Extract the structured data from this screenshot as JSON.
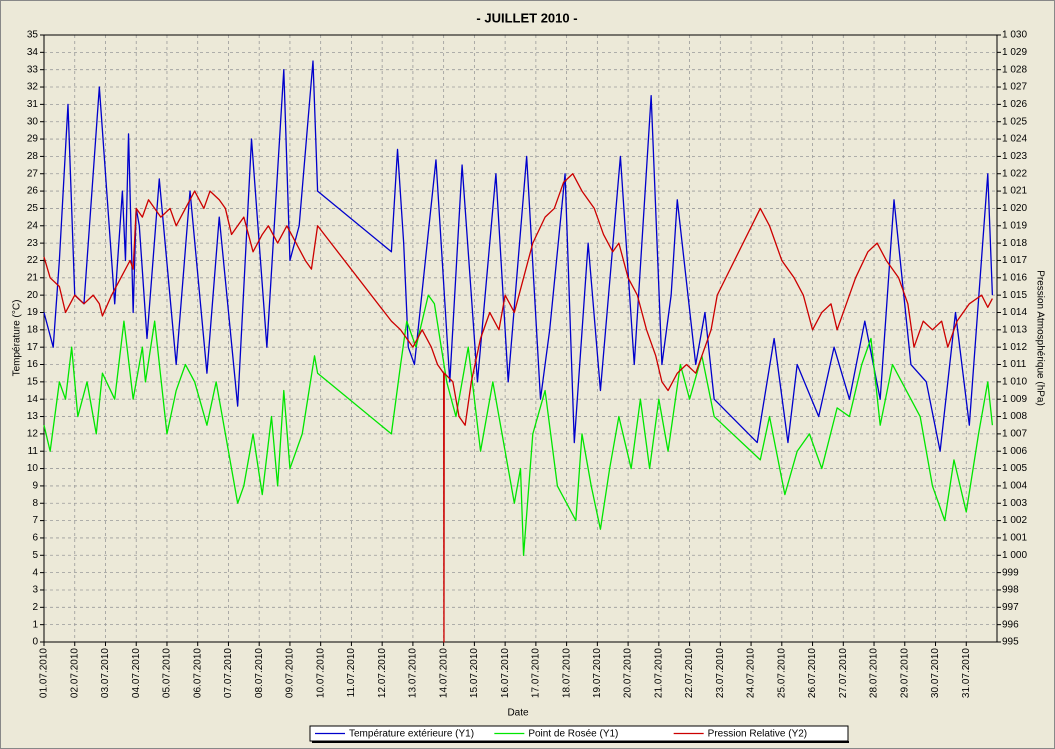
{
  "chart_data": {
    "type": "line",
    "title": "-  JUILLET  2010  -",
    "xlabel": "Date",
    "ylabel": "Température (°C)",
    "y2label": "Pression Atmosphérique (hPa)",
    "grid": true,
    "legend": "bottom",
    "xlim": [
      1,
      32
    ],
    "xticks": [
      {
        "value": 1,
        "label": "01.07.2010"
      },
      {
        "value": 2,
        "label": "02.07.2010"
      },
      {
        "value": 3,
        "label": "03.07.2010"
      },
      {
        "value": 4,
        "label": "04.07.2010"
      },
      {
        "value": 5,
        "label": "05.07.2010"
      },
      {
        "value": 6,
        "label": "06.07.2010"
      },
      {
        "value": 7,
        "label": "07.07.2010"
      },
      {
        "value": 8,
        "label": "08.07.2010"
      },
      {
        "value": 9,
        "label": "09.07.2010"
      },
      {
        "value": 10,
        "label": "10.07.2010"
      },
      {
        "value": 11,
        "label": "11.07.2010"
      },
      {
        "value": 12,
        "label": "12.07.2010"
      },
      {
        "value": 13,
        "label": "13.07.2010"
      },
      {
        "value": 14,
        "label": "14.07.2010"
      },
      {
        "value": 15,
        "label": "15.07.2010"
      },
      {
        "value": 16,
        "label": "16.07.2010"
      },
      {
        "value": 17,
        "label": "17.07.2010"
      },
      {
        "value": 18,
        "label": "18.07.2010"
      },
      {
        "value": 19,
        "label": "19.07.2010"
      },
      {
        "value": 20,
        "label": "20.07.2010"
      },
      {
        "value": 21,
        "label": "21.07.2010"
      },
      {
        "value": 22,
        "label": "22.07.2010"
      },
      {
        "value": 23,
        "label": "23.07.2010"
      },
      {
        "value": 24,
        "label": "24.07.2010"
      },
      {
        "value": 25,
        "label": "25.07.2010"
      },
      {
        "value": 26,
        "label": "26.07.2010"
      },
      {
        "value": 27,
        "label": "27.07.2010"
      },
      {
        "value": 28,
        "label": "28.07.2010"
      },
      {
        "value": 29,
        "label": "29.07.2010"
      },
      {
        "value": 30,
        "label": "30.07.2010"
      },
      {
        "value": 31,
        "label": "31.07.2010"
      }
    ],
    "ylim": [
      0,
      35
    ],
    "yticks": [
      0,
      1,
      2,
      3,
      4,
      5,
      6,
      7,
      8,
      9,
      10,
      11,
      12,
      13,
      14,
      15,
      16,
      17,
      18,
      19,
      20,
      21,
      22,
      23,
      24,
      25,
      26,
      27,
      28,
      29,
      30,
      31,
      32,
      33,
      34,
      35
    ],
    "y2lim": [
      995,
      1030
    ],
    "y2ticks": [
      995,
      996,
      997,
      998,
      999,
      {
        "value": 1000,
        "label": "1 000"
      },
      {
        "value": 1001,
        "label": "1 001"
      },
      {
        "value": 1002,
        "label": "1 002"
      },
      {
        "value": 1003,
        "label": "1 003"
      },
      {
        "value": 1004,
        "label": "1 004"
      },
      {
        "value": 1005,
        "label": "1 005"
      },
      {
        "value": 1006,
        "label": "1 006"
      },
      {
        "value": 1007,
        "label": "1 007"
      },
      {
        "value": 1008,
        "label": "1 008"
      },
      {
        "value": 1009,
        "label": "1 009"
      },
      {
        "value": 1010,
        "label": "1 010"
      },
      {
        "value": 1011,
        "label": "1 011"
      },
      {
        "value": 1012,
        "label": "1 012"
      },
      {
        "value": 1013,
        "label": "1 013"
      },
      {
        "value": 1014,
        "label": "1 014"
      },
      {
        "value": 1015,
        "label": "1 015"
      },
      {
        "value": 1016,
        "label": "1 016"
      },
      {
        "value": 1017,
        "label": "1 017"
      },
      {
        "value": 1018,
        "label": "1 018"
      },
      {
        "value": 1019,
        "label": "1 019"
      },
      {
        "value": 1020,
        "label": "1 020"
      },
      {
        "value": 1021,
        "label": "1 021"
      },
      {
        "value": 1022,
        "label": "1 022"
      },
      {
        "value": 1023,
        "label": "1 023"
      },
      {
        "value": 1024,
        "label": "1 024"
      },
      {
        "value": 1025,
        "label": "1 025"
      },
      {
        "value": 1026,
        "label": "1 026"
      },
      {
        "value": 1027,
        "label": "1 027"
      },
      {
        "value": 1028,
        "label": "1 028"
      },
      {
        "value": 1029,
        "label": "1 029"
      },
      {
        "value": 1030,
        "label": "1 030"
      }
    ],
    "series": [
      {
        "name": "Température extérieure (Y1)",
        "color": "#0000cc",
        "axis": "y",
        "x": [
          1.0,
          1.3,
          1.5,
          1.78,
          2.0,
          2.3,
          2.8,
          3.3,
          3.55,
          3.65,
          3.75,
          3.9,
          4.0,
          4.1,
          4.35,
          4.75,
          5.3,
          5.75,
          6.3,
          6.7,
          7.3,
          7.75,
          8.25,
          8.8,
          9.0,
          9.3,
          9.75,
          9.9,
          12.3,
          12.5,
          12.7,
          12.85,
          13.05,
          13.75,
          14.2,
          14.6,
          15.1,
          15.7,
          16.1,
          16.7,
          17.15,
          17.45,
          17.95,
          18.25,
          18.7,
          19.1,
          19.75,
          20.2,
          20.75,
          21.1,
          21.4,
          21.6,
          22.2,
          22.5,
          22.8,
          24.2,
          24.75,
          25.2,
          25.5,
          26.2,
          26.7,
          27.2,
          27.7,
          28.2,
          28.65,
          29.2,
          29.7,
          30.15,
          30.65,
          31.1,
          31.7,
          31.85
        ],
        "values": [
          19,
          17,
          22,
          31,
          20,
          19.5,
          32,
          19.5,
          26,
          22,
          29.3,
          19,
          25,
          24,
          17.5,
          26.7,
          16,
          26,
          15.5,
          24.5,
          13.6,
          29,
          17,
          33,
          22,
          24,
          33.5,
          26,
          22.5,
          28.4,
          23,
          17,
          16,
          27.8,
          15,
          27.5,
          15,
          27,
          15,
          28,
          14,
          18,
          27,
          11.5,
          23,
          14.5,
          28,
          16,
          31.5,
          16,
          20,
          25.5,
          16,
          19,
          14,
          11.5,
          17.5,
          11.5,
          16,
          13,
          17,
          14,
          18.5,
          14,
          25.5,
          16,
          15,
          11,
          19,
          12.5,
          27,
          20
        ]
      },
      {
        "name": "Point de Rosée (Y1)",
        "color": "#00e600",
        "axis": "y",
        "x": [
          1.0,
          1.2,
          1.5,
          1.7,
          1.9,
          2.1,
          2.4,
          2.7,
          2.9,
          3.3,
          3.6,
          3.9,
          4.2,
          4.3,
          4.6,
          5.0,
          5.3,
          5.6,
          5.9,
          6.3,
          6.6,
          6.9,
          7.3,
          7.5,
          7.8,
          8.1,
          8.4,
          8.6,
          8.8,
          9.0,
          9.4,
          9.8,
          9.9,
          12.3,
          12.6,
          12.8,
          13.1,
          13.5,
          13.7,
          14.1,
          14.4,
          14.8,
          15.2,
          15.6,
          15.9,
          16.3,
          16.5,
          16.6,
          16.9,
          17.3,
          17.7,
          18.3,
          18.5,
          18.8,
          19.1,
          19.4,
          19.7,
          20.1,
          20.4,
          20.7,
          21.0,
          21.3,
          21.7,
          22.0,
          22.4,
          22.8,
          24.3,
          24.6,
          25.1,
          25.5,
          25.9,
          26.3,
          26.8,
          27.2,
          27.6,
          27.9,
          28.2,
          28.6,
          29.2,
          29.5,
          29.9,
          30.3,
          30.6,
          31.0,
          31.4,
          31.7,
          31.85
        ],
        "values": [
          12.5,
          11,
          15,
          14,
          17,
          13,
          15,
          12,
          15.5,
          14,
          18.5,
          14,
          17,
          15,
          18.5,
          12,
          14.5,
          16,
          15,
          12.5,
          15,
          12,
          8,
          9,
          12,
          8.5,
          13,
          9,
          14.5,
          10,
          12,
          16.5,
          15.5,
          12,
          16,
          18.5,
          17,
          20,
          19.5,
          15,
          13,
          17,
          11,
          15,
          12,
          8,
          10,
          5,
          12,
          14.5,
          9,
          7,
          12,
          9,
          6.5,
          10,
          13,
          10,
          14,
          10,
          14,
          11,
          16,
          14,
          16.5,
          13,
          10.5,
          13,
          8.5,
          11,
          12,
          10,
          13.5,
          13,
          16,
          17.5,
          12.5,
          16,
          14,
          13,
          9,
          7,
          10.5,
          7.5,
          12,
          15,
          12.5
        ]
      },
      {
        "name": "Pression Relative (Y2)",
        "color": "#cc0000",
        "axis": "y2",
        "x": [
          1.0,
          1.2,
          1.5,
          1.7,
          2.0,
          2.3,
          2.6,
          2.8,
          2.9,
          3.2,
          3.5,
          3.8,
          3.9,
          4.0,
          4.2,
          4.4,
          4.8,
          5.1,
          5.3,
          5.6,
          5.9,
          6.2,
          6.4,
          6.7,
          6.9,
          7.1,
          7.3,
          7.5,
          7.8,
          8.1,
          8.3,
          8.6,
          8.9,
          9.2,
          9.5,
          9.7,
          9.9,
          12.3,
          12.6,
          13.0,
          13.3,
          13.6,
          13.8,
          14.0,
          14.01,
          14.02,
          14.3,
          14.5,
          14.7,
          14.9,
          15.2,
          15.5,
          15.8,
          16.0,
          16.3,
          16.6,
          16.9,
          17.3,
          17.6,
          17.9,
          18.2,
          18.5,
          18.9,
          19.2,
          19.5,
          19.7,
          20.0,
          20.3,
          20.6,
          20.9,
          21.1,
          21.3,
          21.6,
          21.9,
          22.2,
          22.4,
          22.7,
          22.9,
          24.3,
          24.6,
          25.0,
          25.4,
          25.7,
          26.0,
          26.3,
          26.6,
          26.8,
          27.1,
          27.4,
          27.8,
          28.1,
          28.4,
          28.8,
          29.1,
          29.3,
          29.6,
          29.9,
          30.2,
          30.4,
          30.7,
          31.1,
          31.5,
          31.7,
          31.85
        ],
        "values": [
          1017.2,
          1016,
          1015.5,
          1014,
          1015,
          1014.5,
          1015,
          1014.5,
          1013.8,
          1015,
          1016,
          1017,
          1016.5,
          1020,
          1019.5,
          1020.5,
          1019.5,
          1020,
          1019,
          1020,
          1021,
          1020,
          1021,
          1020.5,
          1020,
          1018.5,
          1019,
          1019.5,
          1017.5,
          1018.5,
          1019,
          1018,
          1019,
          1018,
          1017,
          1016.5,
          1019,
          1013.5,
          1013,
          1012,
          1013,
          1012,
          1011,
          1010.5,
          995,
          1010.5,
          1010,
          1008,
          1007.5,
          1010,
          1012.5,
          1014,
          1013,
          1015,
          1014,
          1016,
          1018,
          1019.5,
          1020,
          1021.5,
          1022,
          1021,
          1020,
          1018.5,
          1017.5,
          1018,
          1016,
          1015,
          1013,
          1011.5,
          1010,
          1009.5,
          1010.5,
          1011,
          1010.5,
          1011.5,
          1013,
          1015,
          1020,
          1019,
          1017,
          1016,
          1015,
          1013,
          1014,
          1014.5,
          1013,
          1014.5,
          1016,
          1017.5,
          1018,
          1017,
          1016,
          1014.5,
          1012,
          1013.5,
          1013,
          1013.5,
          1012,
          1013.5,
          1014.5,
          1015,
          1014.3,
          1014.8
        ]
      }
    ]
  }
}
